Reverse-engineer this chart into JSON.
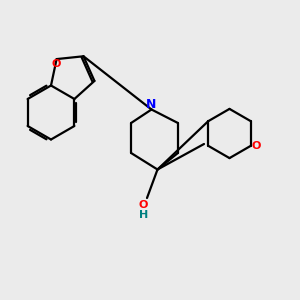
{
  "bg_color": "#ebebeb",
  "bond_color": "#000000",
  "N_color": "#0000ff",
  "O_color": "#ff0000",
  "OH_color": "#008080",
  "line_width": 1.6,
  "figsize": [
    3.0,
    3.0
  ],
  "dpi": 100,
  "xlim": [
    0,
    10
  ],
  "ylim": [
    0,
    10
  ]
}
